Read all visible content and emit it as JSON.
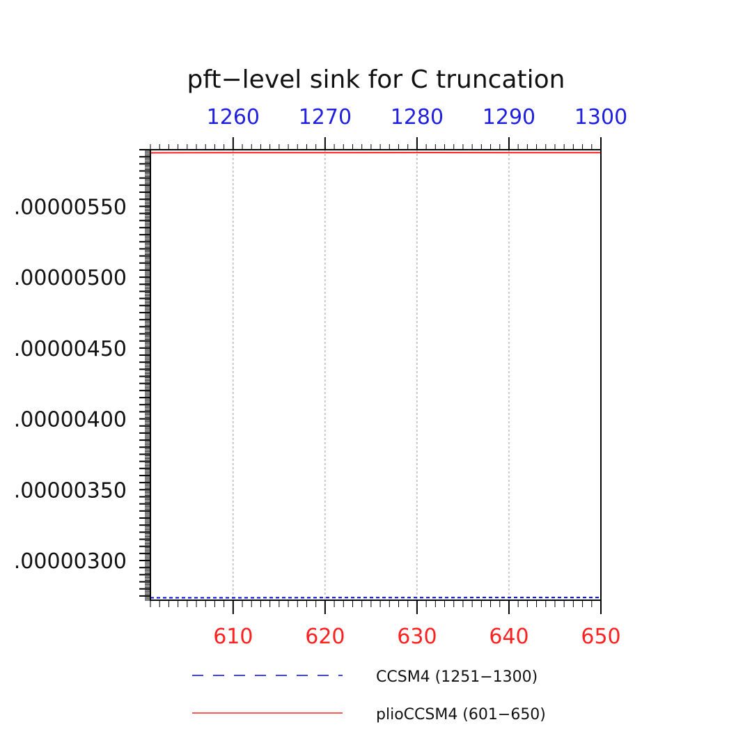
{
  "chart_data": {
    "type": "line",
    "title": "pft−level sink for C truncation",
    "bottom_axis": {
      "range": [
        601,
        650
      ],
      "ticks": [
        610,
        620,
        630,
        640,
        650
      ],
      "tick_labels": [
        "610",
        "620",
        "630",
        "640",
        "650"
      ],
      "color": "#ff2020"
    },
    "top_axis": {
      "range": [
        1251,
        1300
      ],
      "ticks": [
        1260,
        1270,
        1280,
        1290,
        1300
      ],
      "tick_labels": [
        "1260",
        "1270",
        "1280",
        "1290",
        "1300"
      ],
      "color": "#2020e0"
    },
    "y_axis": {
      "range": [
        2.72e-06,
        5.9e-06
      ],
      "ticks": [
        3e-06,
        3.5e-06,
        4e-06,
        4.5e-06,
        5e-06,
        5.5e-06
      ],
      "tick_labels": [
        ".00000300",
        ".00000350",
        ".00000400",
        ".00000450",
        ".00000500",
        ".00000550"
      ]
    },
    "grid": "vertical dashed at major ticks",
    "series": [
      {
        "name": "CCSM4 (1251−1300)",
        "axis": "top",
        "style": "dashed",
        "color": "#0000ee",
        "x": [
          1251,
          1260,
          1270,
          1280,
          1290,
          1300
        ],
        "y": [
          2.737e-06,
          2.737e-06,
          2.738e-06,
          2.738e-06,
          2.739e-06,
          2.739e-06
        ]
      },
      {
        "name": "plioCCSM4 (601−650)",
        "axis": "bottom",
        "style": "solid",
        "color": "#ff2020",
        "x": [
          601,
          610,
          620,
          630,
          640,
          650
        ],
        "y": [
          5.878e-06,
          5.879e-06,
          5.879e-06,
          5.88e-06,
          5.879e-06,
          5.879e-06
        ]
      }
    ],
    "legend_placement": "bottom"
  }
}
